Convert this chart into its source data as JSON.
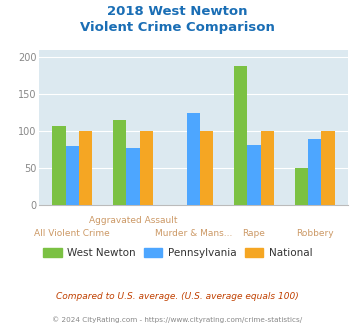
{
  "title_line1": "2018 West Newton",
  "title_line2": "Violent Crime Comparison",
  "categories": [
    "All Violent Crime",
    "Aggravated\nAssault",
    "Murder & Mans...",
    "Rape",
    "Robbery"
  ],
  "west_newton": [
    106,
    115,
    0,
    188,
    49
  ],
  "pennsylvania": [
    80,
    76,
    124,
    81,
    89
  ],
  "national": [
    100,
    100,
    100,
    100,
    100
  ],
  "color_west_newton": "#7bc143",
  "color_pennsylvania": "#4da6ff",
  "color_national": "#f5a623",
  "ylim": [
    0,
    210
  ],
  "yticks": [
    0,
    50,
    100,
    150,
    200
  ],
  "plot_bg": "#dce9f0",
  "legend_labels": [
    "West Newton",
    "Pennsylvania",
    "National"
  ],
  "footnote1": "Compared to U.S. average. (U.S. average equals 100)",
  "footnote2": "© 2024 CityRating.com - https://www.cityrating.com/crime-statistics/",
  "title_color": "#1a6eb5",
  "footnote1_color": "#c04000",
  "footnote2_color": "#888888",
  "xlabel_color": "#aaaaaa",
  "xlabel_color2": "#cc9966",
  "tick_color": "#888888"
}
